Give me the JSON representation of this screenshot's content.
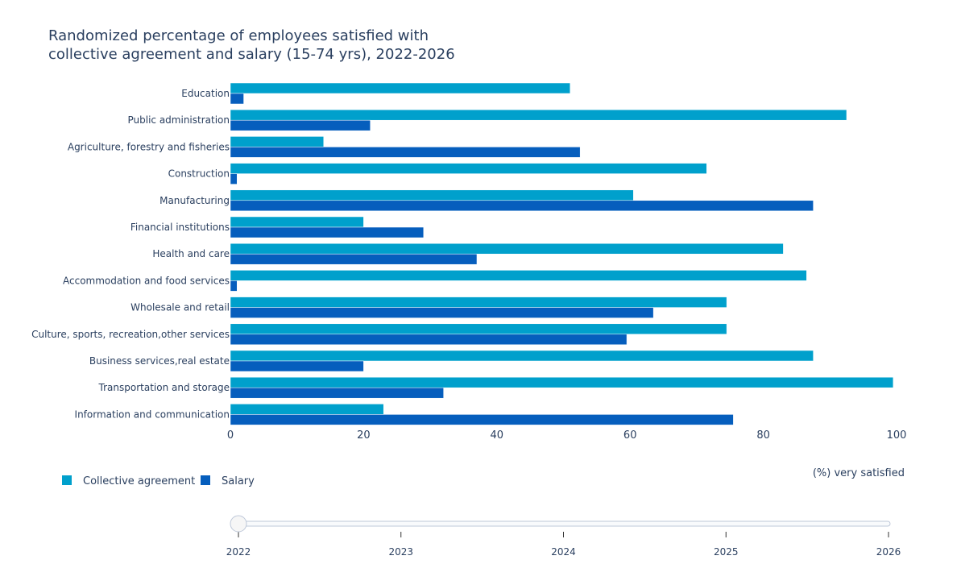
{
  "title_lines": [
    "Randomized percentage of employees satisfied with",
    "collective agreement and salary (15-74 yrs), 2022-2026"
  ],
  "chart_data": {
    "type": "bar",
    "orientation": "horizontal",
    "title": "Randomized percentage of employees satisfied with collective agreement and salary (15-74 yrs), 2022-2026",
    "xlabel": "(%) very satisfied",
    "ylabel": "",
    "xlim": [
      0,
      100
    ],
    "xticks": [
      0,
      20,
      40,
      60,
      80,
      100
    ],
    "grid": false,
    "legend_placement": "bottom-left",
    "categories": [
      "Education",
      "Public administration",
      "Agriculture, forestry and fisheries",
      "Construction",
      "Manufacturing",
      "Financial institutions",
      "Health and care",
      "Accommodation and food services",
      "Wholesale and retail",
      "Culture, sports, recreation,other services",
      "Business services,real estate",
      "Transportation and storage",
      "Information and communication"
    ],
    "series": [
      {
        "name": "Collective agreement",
        "color": "#00a0cc",
        "values": [
          51,
          92.5,
          14,
          71.5,
          60.5,
          20,
          83,
          86.5,
          74.5,
          74.5,
          87.5,
          99.5,
          23
        ]
      },
      {
        "name": "Salary",
        "color": "#065ebd",
        "values": [
          2,
          21,
          52.5,
          1,
          87.5,
          29,
          37,
          1,
          63.5,
          59.5,
          20,
          32,
          75.5
        ]
      }
    ]
  },
  "slider": {
    "years": [
      "2022",
      "2023",
      "2024",
      "2025",
      "2026"
    ],
    "current": "2022"
  }
}
